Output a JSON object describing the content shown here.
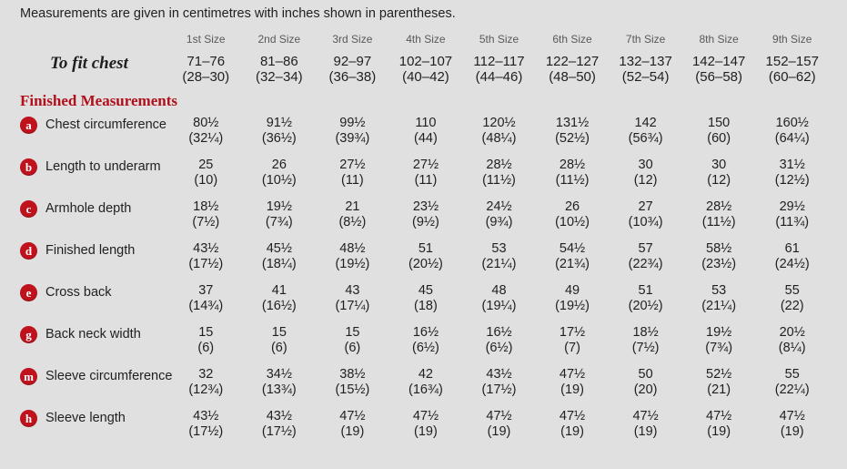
{
  "intro": "Measurements are given in centimetres with inches shown in parentheses.",
  "size_headers": [
    "1st Size",
    "2nd Size",
    "3rd Size",
    "4th Size",
    "5th Size",
    "6th Size",
    "7th Size",
    "8th Size",
    "9th Size"
  ],
  "to_fit": {
    "label": "To fit chest",
    "cm": [
      "71–76",
      "81–86",
      "92–97",
      "102–107",
      "112–117",
      "122–127",
      "132–137",
      "142–147",
      "152–157"
    ],
    "in": [
      "(28–30)",
      "(32–34)",
      "(36–38)",
      "(40–42)",
      "(44–46)",
      "(48–50)",
      "(52–54)",
      "(56–58)",
      "(60–62)"
    ]
  },
  "section_title": "Finished Measurements",
  "rows": [
    {
      "key": "a",
      "label": "Chest circumference",
      "cm": [
        "80½",
        "91½",
        "99½",
        "110",
        "120½",
        "131½",
        "142",
        "150",
        "160½"
      ],
      "in": [
        "(32¼)",
        "(36½)",
        "(39¾)",
        "(44)",
        "(48¼)",
        "(52½)",
        "(56¾)",
        "(60)",
        "(64¼)"
      ]
    },
    {
      "key": "b",
      "label": "Length to underarm",
      "cm": [
        "25",
        "26",
        "27½",
        "27½",
        "28½",
        "28½",
        "30",
        "30",
        "31½"
      ],
      "in": [
        "(10)",
        "(10½)",
        "(11)",
        "(11)",
        "(11½)",
        "(11½)",
        "(12)",
        "(12)",
        "(12½)"
      ]
    },
    {
      "key": "c",
      "label": "Armhole depth",
      "cm": [
        "18½",
        "19½",
        "21",
        "23½",
        "24½",
        "26",
        "27",
        "28½",
        "29½"
      ],
      "in": [
        "(7½)",
        "(7¾)",
        "(8½)",
        "(9½)",
        "(9¾)",
        "(10½)",
        "(10¾)",
        "(11½)",
        "(11¾)"
      ]
    },
    {
      "key": "d",
      "label": "Finished length",
      "cm": [
        "43½",
        "45½",
        "48½",
        "51",
        "53",
        "54½",
        "57",
        "58½",
        "61"
      ],
      "in": [
        "(17½)",
        "(18¼)",
        "(19½)",
        "(20½)",
        "(21¼)",
        "(21¾)",
        "(22¾)",
        "(23½)",
        "(24½)"
      ]
    },
    {
      "key": "e",
      "label": "Cross back",
      "cm": [
        "37",
        "41",
        "43",
        "45",
        "48",
        "49",
        "51",
        "53",
        "55"
      ],
      "in": [
        "(14¾)",
        "(16½)",
        "(17¼)",
        "(18)",
        "(19¼)",
        "(19½)",
        "(20½)",
        "(21¼)",
        "(22)"
      ]
    },
    {
      "key": "g",
      "label": "Back neck width",
      "cm": [
        "15",
        "15",
        "15",
        "16½",
        "16½",
        "17½",
        "18½",
        "19½",
        "20½"
      ],
      "in": [
        "(6)",
        "(6)",
        "(6)",
        "(6½)",
        "(6½)",
        "(7)",
        "(7½)",
        "(7¾)",
        "(8¼)"
      ]
    },
    {
      "key": "m",
      "label": "Sleeve circumference",
      "cm": [
        "32",
        "34½",
        "38½",
        "42",
        "43½",
        "47½",
        "50",
        "52½",
        "55"
      ],
      "in": [
        "(12¾)",
        "(13¾)",
        "(15½)",
        "(16¾)",
        "(17½)",
        "(19)",
        "(20)",
        "(21)",
        "(22¼)"
      ]
    },
    {
      "key": "h",
      "label": "Sleeve length",
      "cm": [
        "43½",
        "43½",
        "47½",
        "47½",
        "47½",
        "47½",
        "47½",
        "47½",
        "47½"
      ],
      "in": [
        "(17½)",
        "(17½)",
        "(19)",
        "(19)",
        "(19)",
        "(19)",
        "(19)",
        "(19)",
        "(19)"
      ]
    }
  ],
  "colors": {
    "page_bg": "#e0e0e0",
    "accent_red": "#c0121d",
    "heading_red": "#b1101b",
    "text_dark": "#211e1f",
    "header_gray": "#58595b"
  }
}
